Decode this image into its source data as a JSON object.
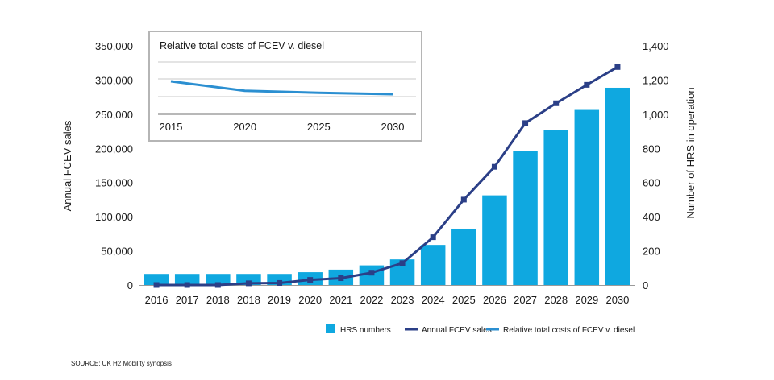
{
  "chart_data": {
    "type": "bar",
    "categories": [
      "2016",
      "2017",
      "2018",
      "2018",
      "2019",
      "2020",
      "2021",
      "2022",
      "2023",
      "2024",
      "2025",
      "2026",
      "2027",
      "2028",
      "2029",
      "2030"
    ],
    "ylabel": "Annual FCEV sales",
    "y2label": "Number of HRS in operation",
    "ylim": [
      0,
      350000
    ],
    "y2lim": [
      0,
      1400
    ],
    "y_ticks": [
      "0",
      "50,000",
      "100,000",
      "150,000",
      "200,000",
      "250,000",
      "300,000",
      "350,000"
    ],
    "y2_ticks": [
      "0",
      "200",
      "400",
      "600",
      "800",
      "1,000",
      "1,200",
      "1,400"
    ],
    "series": [
      {
        "name": "HRS numbers",
        "type": "bar",
        "axis": "y2",
        "color": "#0fa8e0",
        "values": [
          65,
          65,
          65,
          65,
          65,
          75,
          90,
          115,
          150,
          235,
          330,
          525,
          785,
          905,
          1025,
          1155
        ]
      },
      {
        "name": "Annual FCEV sales",
        "type": "line",
        "axis": "y",
        "color": "#2b3f87",
        "values": [
          0,
          0,
          0,
          2500,
          3000,
          7500,
          10000,
          18000,
          32000,
          70000,
          125000,
          173000,
          237000,
          266000,
          293000,
          319000
        ]
      }
    ],
    "legend_position": "bottom-right",
    "inset": {
      "title": "Relative total costs of FCEV v. diesel",
      "x_ticks": [
        "2015",
        "2020",
        "2025",
        "2030"
      ],
      "series": [
        {
          "name": "Relative total costs of FCEV v. diesel",
          "color": "#2b8fd1",
          "x": [
            2015,
            2020,
            2025,
            2030
          ],
          "values": [
            1.0,
            0.72,
            0.66,
            0.62
          ]
        }
      ]
    }
  },
  "source": "SOURCE: UK H2 Mobility synopsis"
}
